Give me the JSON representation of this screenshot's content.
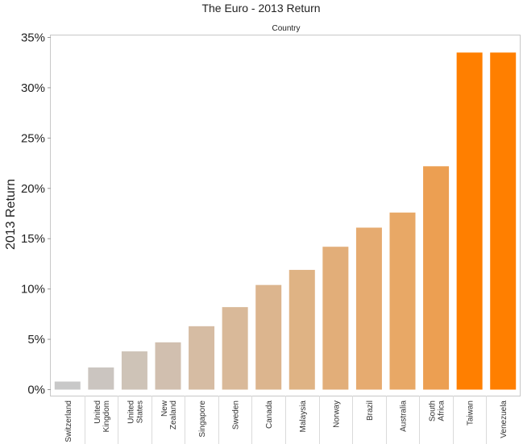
{
  "chart_data": {
    "type": "bar",
    "title": "The Euro - 2013 Return",
    "column_header": "Country",
    "ylabel": "2013 Return",
    "xlabel": "",
    "ylim": [
      -0.6,
      35.2
    ],
    "yticks": [
      0,
      5,
      10,
      15,
      20,
      25,
      30,
      35
    ],
    "ytick_labels": [
      "0%",
      "5%",
      "10%",
      "15%",
      "20%",
      "25%",
      "30%",
      "35%"
    ],
    "grid": false,
    "categories": [
      [
        "Switzerland"
      ],
      [
        "United",
        "Kingdom"
      ],
      [
        "United",
        "States"
      ],
      [
        "New",
        "Zealand"
      ],
      [
        "Singapore"
      ],
      [
        "Sweden"
      ],
      [
        "Canada"
      ],
      [
        "Malaysia"
      ],
      [
        "Norway"
      ],
      [
        "Brazil"
      ],
      [
        "Australia"
      ],
      [
        "South",
        "Africa"
      ],
      [
        "Taiwan"
      ],
      [
        "Venezuela"
      ]
    ],
    "values": [
      0.8,
      2.2,
      3.8,
      4.7,
      6.3,
      8.2,
      10.4,
      11.9,
      14.2,
      16.1,
      17.6,
      22.2,
      33.5,
      33.5
    ],
    "colors": [
      "#c8c8c8",
      "#cbc5c0",
      "#cec3b7",
      "#d1bfaf",
      "#d6bca3",
      "#d9b999",
      "#dcb58e",
      "#dfb384",
      "#e2ae79",
      "#e6ab70",
      "#e8a866",
      "#ec9f52",
      "#ff7f00",
      "#ff7f00"
    ]
  }
}
